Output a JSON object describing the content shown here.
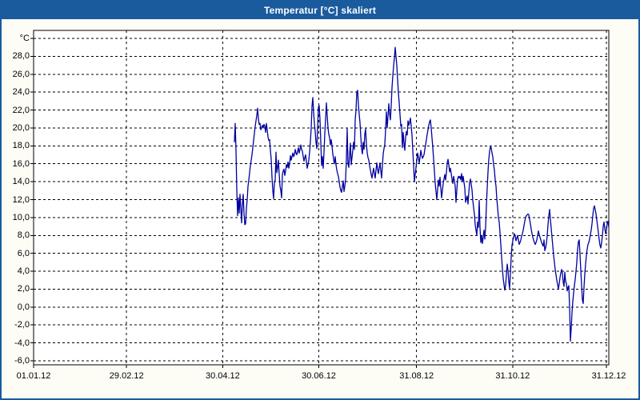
{
  "window": {
    "title": "Temperatur [°C] skaliert"
  },
  "colors": {
    "title_bar": "#1a5b9e",
    "window_border": "#1a5b9e",
    "figure_bg": "#fdfdf6",
    "plot_bg": "#ffffff",
    "grid": "#000000",
    "line": "#0000a0",
    "label_text": "#000000"
  },
  "chart_data": {
    "type": "line",
    "title": "Temperatur [°C] skaliert",
    "grid": "dashed",
    "legend": "none",
    "y_axis": {
      "unit_label": "°C",
      "min": -6,
      "max": 30,
      "tick_step": 2,
      "tick_values": [
        30,
        28,
        26,
        24,
        22,
        20,
        18,
        16,
        14,
        12,
        10,
        8,
        6,
        4,
        2,
        0,
        -2,
        -4,
        -6
      ],
      "tick_labels": [
        "°C",
        "28,0",
        "26,0",
        "24,0",
        "22,0",
        "20,0",
        "18,0",
        "16,0",
        "14,0",
        "12,0",
        "10,0",
        "8,0",
        "6,0",
        "4,0",
        "2,0",
        "0,0",
        "-2,0",
        "-4,0",
        "-6,0"
      ]
    },
    "x_axis": {
      "days_total": 365,
      "tick_days": [
        0,
        59,
        120,
        181,
        243,
        304,
        365
      ],
      "tick_labels": [
        "01.01.12",
        "29.02.12",
        "30.04.12",
        "30.06.12",
        "31.08.12",
        "31.10.12",
        "31.12.12"
      ]
    },
    "series": [
      {
        "name": "Temperatur",
        "unit": "°C",
        "x_start_day": 127.42,
        "x_step_days": 0.50765,
        "temps": [
          18.4,
          20.5,
          17.5,
          13.0,
          10.2,
          12.2,
          10.5,
          12.6,
          11.0,
          9.4,
          11.5,
          12.6,
          10.5,
          9.2,
          9.3,
          11.0,
          12.0,
          13.5,
          14.2,
          15.0,
          15.8,
          16.4,
          17.0,
          17.8,
          18.6,
          19.4,
          20.2,
          20.8,
          21.4,
          22.2,
          21.0,
          20.4,
          20.5,
          19.8,
          20.0,
          20.3,
          20.0,
          20.4,
          20.2,
          19.5,
          20.5,
          19.8,
          19.0,
          18.6,
          18.7,
          17.5,
          16.5,
          14.5,
          13.0,
          12.1,
          13.9,
          14.2,
          17.3,
          15.0,
          15.6,
          16.4,
          14.8,
          13.5,
          13.0,
          12.2,
          14.8,
          15.2,
          15.4,
          14.7,
          15.2,
          15.9,
          15.6,
          16.2,
          15.5,
          16.0,
          16.9,
          16.4,
          16.8,
          17.2,
          16.8,
          17.0,
          17.6,
          17.2,
          17.0,
          17.4,
          17.8,
          17.2,
          17.6,
          18.1,
          17.6,
          17.4,
          16.8,
          16.3,
          16.7,
          17.0,
          16.2,
          15.5,
          15.9,
          16.4,
          17.3,
          18.5,
          20.0,
          22.4,
          23.4,
          21.8,
          20.5,
          19.6,
          18.4,
          17.7,
          20.0,
          22.3,
          22.5,
          20.9,
          18.4,
          15.8,
          16.8,
          15.5,
          17.3,
          19.4,
          21.0,
          22.8,
          21.4,
          20.0,
          19.3,
          18.9,
          18.1,
          18.7,
          18.0,
          17.1,
          16.5,
          16.0,
          16.8,
          15.9,
          15.3,
          14.9,
          14.6,
          14.0,
          13.4,
          13.0,
          12.8,
          13.5,
          14.1,
          12.9,
          13.5,
          14.3,
          16.5,
          19.9,
          16.0,
          15.6,
          17.0,
          18.3,
          15.9,
          16.7,
          17.5,
          18.4,
          17.6,
          20.9,
          22.0,
          24.0,
          24.2,
          22.6,
          21.5,
          20.6,
          19.0,
          17.7,
          17.1,
          18.4,
          17.6,
          19.3,
          19.9,
          18.2,
          17.2,
          16.7,
          16.4,
          15.8,
          15.3,
          14.8,
          14.4,
          15.0,
          15.5,
          14.9,
          14.4,
          15.3,
          16.1,
          15.4,
          14.9,
          15.5,
          16.1,
          15.2,
          14.4,
          15.8,
          17.1,
          17.7,
          18.2,
          19.8,
          21.8,
          20.0,
          21.3,
          22.7,
          21.6,
          20.9,
          22.5,
          24.5,
          25.8,
          26.9,
          27.8,
          29.0,
          28.0,
          27.0,
          25.4,
          23.9,
          22.8,
          21.5,
          20.2,
          20.4,
          17.8,
          19.5,
          18.3,
          17.5,
          19.0,
          19.6,
          19.2,
          20.8,
          20.3,
          20.6,
          21.1,
          20.2,
          19.2,
          17.5,
          15.8,
          14.0,
          14.8,
          15.6,
          16.4,
          17.2,
          16.7,
          16.1,
          16.7,
          17.5,
          17.0,
          16.6,
          16.8,
          17.0,
          17.6,
          18.1,
          18.7,
          19.3,
          19.8,
          20.3,
          20.7,
          20.9,
          20.0,
          18.9,
          17.8,
          16.5,
          15.2,
          13.8,
          12.9,
          12.0,
          13.1,
          14.2,
          13.5,
          14.5,
          13.3,
          12.2,
          13.0,
          13.8,
          14.3,
          14.8,
          14.2,
          15.0,
          16.1,
          16.5,
          15.9,
          15.1,
          15.5,
          14.9,
          14.3,
          13.8,
          14.6,
          14.1,
          13.5,
          11.7,
          13.0,
          14.3,
          14.6,
          14.4,
          14.6,
          14.2,
          14.9,
          14.0,
          14.6,
          13.9,
          13.3,
          11.7,
          12.1,
          12.4,
          11.5,
          12.8,
          13.9,
          14.3,
          13.7,
          13.1,
          11.9,
          11.1,
          10.4,
          9.2,
          8.6,
          8.0,
          9.5,
          8.9,
          11.9,
          8.9,
          7.2,
          8.0,
          7.1,
          7.8,
          8.6,
          7.6,
          8.9,
          11.3,
          13.3,
          15.1,
          16.5,
          17.4,
          17.9,
          17.8,
          17.2,
          16.8,
          15.9,
          15.3,
          14.2,
          13.5,
          12.1,
          11.1,
          10.0,
          9.5,
          8.3,
          7.0,
          5.6,
          4.3,
          3.2,
          2.5,
          1.9,
          2.4,
          3.6,
          4.8,
          4.1,
          2.8,
          2.1,
          3.8,
          5.6,
          6.9,
          7.4,
          7.8,
          8.2,
          7.9,
          7.4,
          7.7,
          8.0,
          7.5,
          7.0,
          7.2,
          7.5,
          7.9,
          8.2,
          8.6,
          9.1,
          9.6,
          10.0,
          10.2,
          10.3,
          10.4,
          10.3,
          9.8,
          9.3,
          8.7,
          8.2,
          7.8,
          7.5,
          7.2,
          7.0,
          7.2,
          7.5,
          8.0,
          8.5,
          8.1,
          7.8,
          7.5,
          7.2,
          7.0,
          6.8,
          7.5,
          6.3,
          6.6,
          7.1,
          8.0,
          9.2,
          10.2,
          10.9,
          9.8,
          8.8,
          7.8,
          6.8,
          5.8,
          5.0,
          4.2,
          3.6,
          3.0,
          2.5,
          2.0,
          2.6,
          3.3,
          3.8,
          4.2,
          3.8,
          2.8,
          2.3,
          3.9,
          2.9,
          2.6,
          1.8,
          2.2,
          2.4,
          0.0,
          -3.8,
          -2.4,
          -0.6,
          0.6,
          1.6,
          2.4,
          3.1,
          4.0,
          5.0,
          6.4,
          7.3,
          7.5,
          5.9,
          4.1,
          2.4,
          0.8,
          0.4,
          2.2,
          3.7,
          4.8,
          5.8,
          6.5,
          7.0,
          7.2,
          7.6,
          8.1,
          8.6,
          9.3,
          10.2,
          11.0,
          11.3,
          10.9,
          10.4,
          9.7,
          9.0,
          8.3,
          7.5,
          6.9,
          6.6,
          7.2,
          8.0,
          9.0,
          9.5,
          8.8,
          8.2,
          8.6,
          9.3,
          9.6,
          8.9
        ]
      }
    ]
  }
}
